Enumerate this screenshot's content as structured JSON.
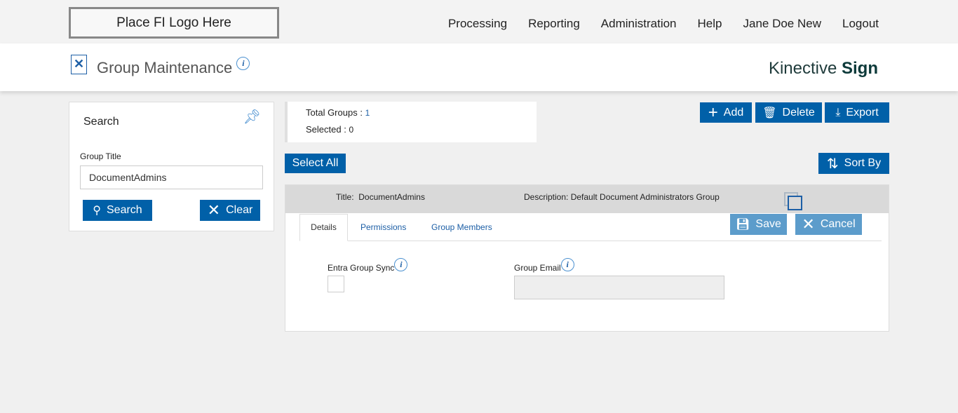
{
  "logo": "Place FI Logo Here",
  "nav": [
    "Processing",
    "Reporting",
    "Administration",
    "Help",
    "Jane Doe New",
    "Logout"
  ],
  "page_title": "Group Maintenance",
  "brand": {
    "light": "Kinective",
    "bold": "Sign"
  },
  "search": {
    "title": "Search",
    "group_title_label": "Group Title",
    "group_title_value": "DocumentAdmins",
    "search_label": "Search",
    "clear_label": "Clear"
  },
  "summary": {
    "total_label": "Total Groups :",
    "total": "1",
    "selected_label": "Selected :",
    "selected": "0"
  },
  "toolbar": {
    "add": "Add",
    "delete": "Delete",
    "export": "Export",
    "select_all": "Select All",
    "sort_by": "Sort By"
  },
  "record": {
    "title_label": "Title:",
    "title": "DocumentAdmins",
    "desc_label": "Description:",
    "desc": "Default Document Administrators Group"
  },
  "tabs": [
    "Details",
    "Permissions",
    "Group Members"
  ],
  "form": {
    "save": "Save",
    "cancel": "Cancel",
    "entra_label": "Entra Group Sync",
    "entra_checked": false,
    "email_label": "Group Email",
    "email_value": ""
  }
}
